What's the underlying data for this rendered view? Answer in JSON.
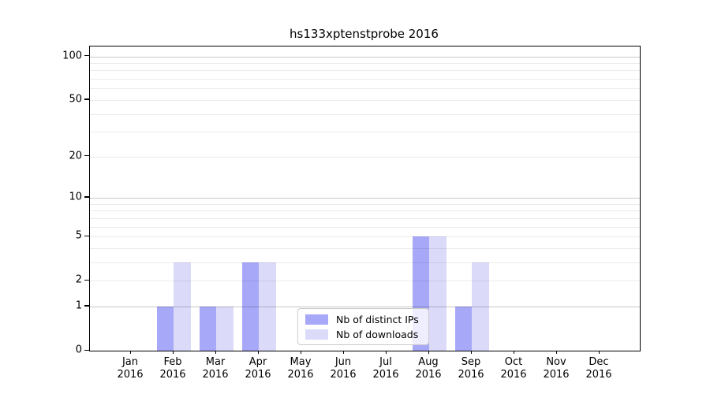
{
  "chart_data": {
    "type": "bar",
    "title": "hs133xptenstprobe 2016",
    "x_categories": [
      "Jan",
      "Feb",
      "Mar",
      "Apr",
      "May",
      "Jun",
      "Jul",
      "Aug",
      "Sep",
      "Oct",
      "Nov",
      "Dec"
    ],
    "x_year": "2016",
    "series": [
      {
        "name": "Nb of distinct IPs",
        "color": "#a8a8f8",
        "values": [
          0,
          1,
          1,
          3,
          0,
          0,
          0,
          5,
          1,
          0,
          0,
          0
        ]
      },
      {
        "name": "Nb of downloads",
        "color": "#dbdbf9",
        "values": [
          0,
          3,
          1,
          3,
          0,
          0,
          0,
          5,
          3,
          0,
          0,
          0
        ]
      }
    ],
    "yscale": "log1p",
    "ylim": [
      0,
      117
    ],
    "yticks": [
      0,
      1,
      2,
      5,
      10,
      20,
      50,
      100
    ],
    "major_gridlines": [
      1,
      10,
      100
    ],
    "minor_gridlines": [
      2,
      3,
      4,
      5,
      6,
      7,
      8,
      9,
      20,
      30,
      40,
      50,
      60,
      70,
      80,
      90
    ],
    "grid": "horizontal",
    "legend_position": "lower-center-inside",
    "axis_color": "#000000",
    "major_grid_color": "rgba(0,0,0,0.22)",
    "minor_grid_color": "rgba(0,0,0,0.08)"
  }
}
